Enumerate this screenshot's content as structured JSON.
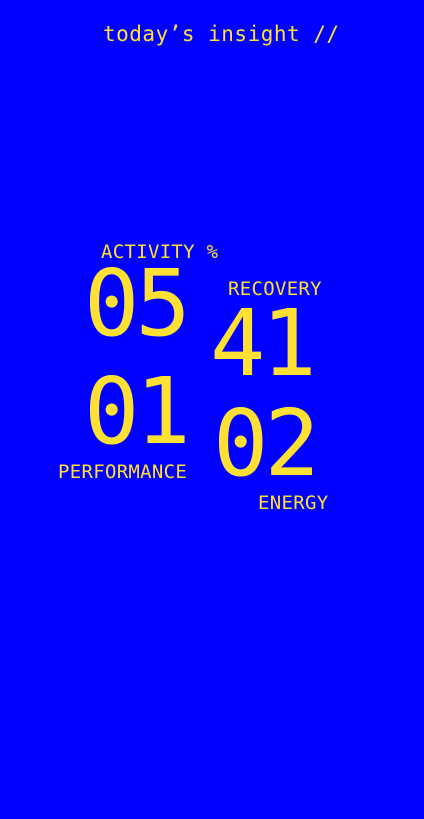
{
  "header": {
    "title": "today’s insight //"
  },
  "colors": {
    "background": "#0000ff",
    "accent": "#ffe033"
  },
  "metrics": {
    "activity": {
      "label": "ACTIVITY %",
      "value": "05"
    },
    "recovery": {
      "label": "RECOVERY",
      "value": "41"
    },
    "performance": {
      "label": "PERFORMANCE",
      "value": "01"
    },
    "energy": {
      "label": "ENERGY",
      "value": "02"
    }
  }
}
